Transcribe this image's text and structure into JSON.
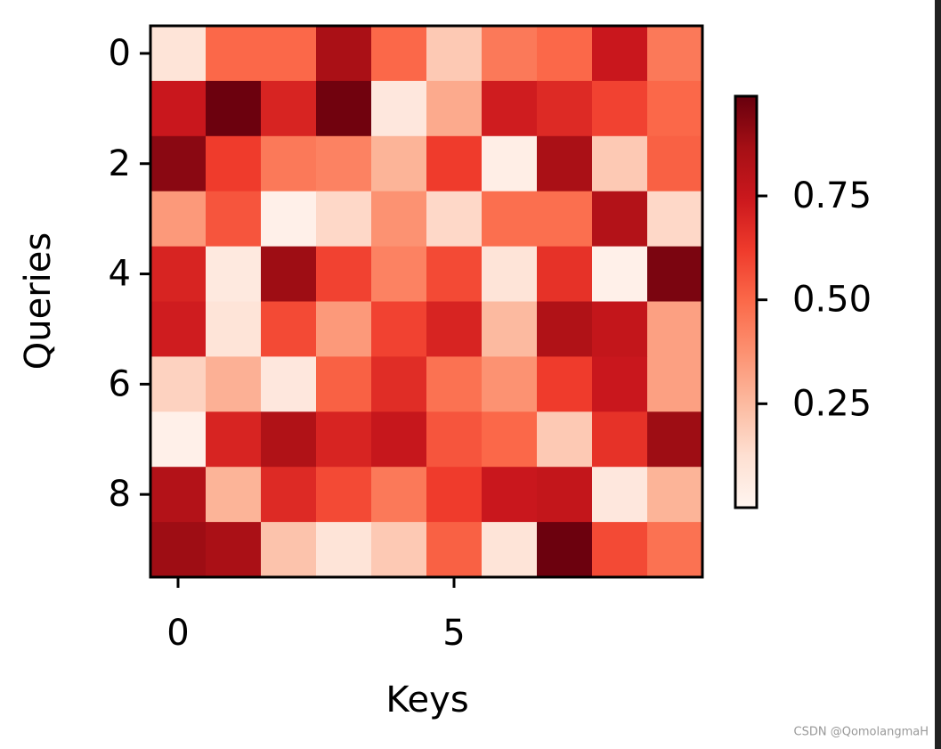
{
  "chart_data": {
    "type": "heatmap",
    "x_label": "Keys",
    "y_label": "Queries",
    "xlim": [
      -0.5,
      9.5
    ],
    "xticks": [
      0,
      5
    ],
    "ylim": [
      9.5,
      -0.5
    ],
    "yticks": [
      0,
      2,
      4,
      6,
      8
    ],
    "values": [
      [
        0.1,
        0.5,
        0.5,
        0.85,
        0.5,
        0.2,
        0.45,
        0.5,
        0.75,
        0.45
      ],
      [
        0.75,
        0.98,
        0.7,
        0.97,
        0.08,
        0.3,
        0.73,
        0.68,
        0.6,
        0.5
      ],
      [
        0.92,
        0.62,
        0.45,
        0.42,
        0.27,
        0.62,
        0.04,
        0.85,
        0.2,
        0.52
      ],
      [
        0.35,
        0.55,
        0.03,
        0.15,
        0.37,
        0.15,
        0.48,
        0.48,
        0.82,
        0.15
      ],
      [
        0.7,
        0.07,
        0.88,
        0.6,
        0.42,
        0.58,
        0.1,
        0.65,
        0.03,
        0.95
      ],
      [
        0.73,
        0.1,
        0.58,
        0.35,
        0.6,
        0.7,
        0.25,
        0.83,
        0.77,
        0.33
      ],
      [
        0.17,
        0.28,
        0.08,
        0.52,
        0.67,
        0.47,
        0.37,
        0.62,
        0.75,
        0.33
      ],
      [
        0.03,
        0.7,
        0.83,
        0.7,
        0.76,
        0.55,
        0.5,
        0.2,
        0.65,
        0.88
      ],
      [
        0.82,
        0.27,
        0.68,
        0.58,
        0.45,
        0.62,
        0.75,
        0.77,
        0.08,
        0.27
      ],
      [
        0.88,
        0.85,
        0.22,
        0.1,
        0.2,
        0.52,
        0.1,
        0.98,
        0.58,
        0.47
      ]
    ],
    "colormap_colors": [
      "#fff5f0",
      "#fee0d2",
      "#fcbba1",
      "#fc9272",
      "#fb6a4a",
      "#ef3b2c",
      "#cb181d",
      "#a50f15",
      "#67000d"
    ],
    "clim": [
      0,
      0.99
    ],
    "colorbar_ticks": [
      0.25,
      {
        "value": 0.5,
        "label": "0.50"
      },
      0.75
    ],
    "watermark": "CSDN @QomolangmaH"
  }
}
